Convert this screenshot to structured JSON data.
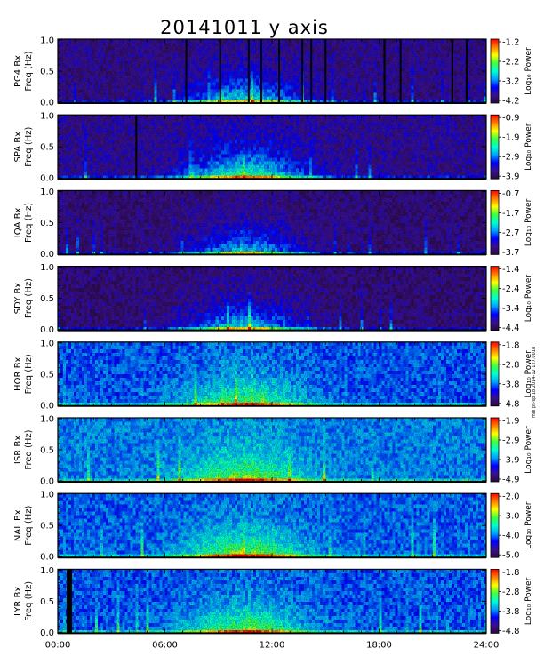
{
  "chart_data": {
    "type": "heatmap",
    "title": "20141011 y axis",
    "xlabel": "",
    "x_ticks": [
      "00:00",
      "06:00",
      "12:00",
      "18:00",
      "24:00"
    ],
    "xlim_hours": [
      0,
      24
    ],
    "y_ticks": [
      "0.0",
      "0.5",
      "1.0"
    ],
    "ylim": [
      0,
      1.0
    ],
    "colorbar_label": "Log₁₀ Power",
    "credit": "mdl ps-sp 1b 2014-12 127.0018",
    "colorbar_colors": [
      "#2a0a3a",
      "#3a1090",
      "#0000ff",
      "#00a0ff",
      "#00ffd0",
      "#40ff40",
      "#ffff00",
      "#ff8000",
      "#ff0000"
    ],
    "panels": [
      {
        "station": "PG4",
        "ylabel_line1": "PG4 Bx",
        "ylabel_line2": "Freq (Hz)",
        "cbar_ticks": [
          "-1.2",
          "-2.2",
          "-3.2",
          "-4.2"
        ],
        "base_level": 0.12,
        "activity": 0.5,
        "gaps_hours": [
          7.2,
          9.1,
          10.7,
          11.4,
          12.4,
          13.7,
          14.2,
          15.0,
          18.3,
          19.2,
          22.1,
          22.9
        ]
      },
      {
        "station": "SPA",
        "ylabel_line1": "SPA Bx",
        "ylabel_line2": "Freq (Hz)",
        "cbar_ticks": [
          "-0.9",
          "-1.9",
          "-2.9",
          "-3.9"
        ],
        "base_level": 0.14,
        "activity": 0.6,
        "gaps_hours": [
          4.4
        ]
      },
      {
        "station": "IQA",
        "ylabel_line1": "IQA Bx",
        "ylabel_line2": "Freq (Hz)",
        "cbar_ticks": [
          "-0.7",
          "-1.7",
          "-2.7",
          "-3.7"
        ],
        "base_level": 0.1,
        "activity": 0.45,
        "gaps_hours": []
      },
      {
        "station": "SDY",
        "ylabel_line1": "SDY Bx",
        "ylabel_line2": "Freq (Hz)",
        "cbar_ticks": [
          "-1.4",
          "-2.4",
          "-3.4",
          "-4.4"
        ],
        "base_level": 0.1,
        "activity": 0.5,
        "gaps_hours": []
      },
      {
        "station": "HOR",
        "ylabel_line1": "HOR Bx",
        "ylabel_line2": "Freq (Hz)",
        "cbar_ticks": [
          "-1.8",
          "-2.8",
          "-3.8",
          "-4.8"
        ],
        "base_level": 0.32,
        "activity": 0.42,
        "gaps_hours": []
      },
      {
        "station": "ISR",
        "ylabel_line1": "ISR Bx",
        "ylabel_line2": "Freq (Hz)",
        "cbar_ticks": [
          "-1.9",
          "-2.9",
          "-3.9",
          "-4.9"
        ],
        "base_level": 0.36,
        "activity": 0.45,
        "gaps_hours": []
      },
      {
        "station": "NAL",
        "ylabel_line1": "NAL Bx",
        "ylabel_line2": "Freq (Hz)",
        "cbar_ticks": [
          "-2.0",
          "-3.0",
          "-4.0",
          "-5.0"
        ],
        "base_level": 0.33,
        "activity": 0.48,
        "gaps_hours": []
      },
      {
        "station": "LYR",
        "ylabel_line1": "LYR Bx",
        "ylabel_line2": "Freq (Hz)",
        "cbar_ticks": [
          "-1.8",
          "-2.8",
          "-3.8",
          "-4.8"
        ],
        "base_level": 0.32,
        "activity": 0.45,
        "gaps_hours": []
      }
    ]
  }
}
